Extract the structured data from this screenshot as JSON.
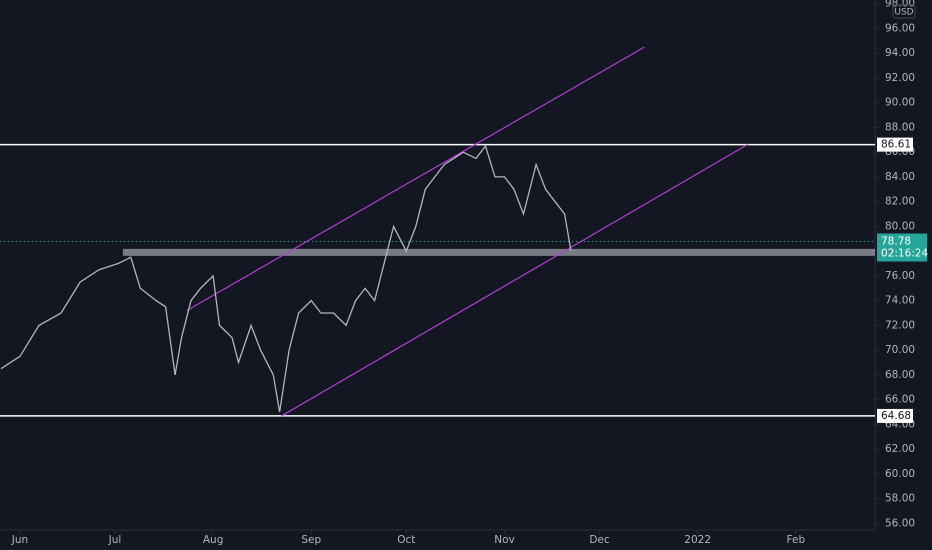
{
  "chart_data": {
    "type": "line",
    "x": [
      -6,
      0,
      6,
      13,
      19,
      25,
      31,
      35,
      38,
      43,
      46,
      49,
      51,
      54,
      57,
      61,
      63,
      67,
      69,
      73,
      76,
      80,
      82,
      85,
      88,
      92,
      95,
      99,
      103,
      106,
      109,
      112,
      115,
      118,
      122,
      125,
      128,
      131,
      134,
      137,
      140,
      144,
      147,
      150,
      153,
      156,
      159,
      163,
      166,
      169,
      172,
      174
    ],
    "series": [
      {
        "name": "USD",
        "color": "#b2b5be",
        "values": [
          68.5,
          69.5,
          72,
          73,
          75.5,
          76.5,
          77,
          77.5,
          75,
          74,
          73.5,
          68,
          71,
          74,
          75,
          76,
          72,
          71,
          69,
          72,
          70,
          68,
          65,
          70,
          73,
          74,
          73,
          73,
          72,
          74,
          75,
          74,
          77,
          80,
          78,
          80,
          83,
          84,
          85,
          85.5,
          86,
          85.5,
          86.5,
          84,
          84,
          83,
          81,
          85,
          83,
          82,
          81,
          78
        ]
      }
    ],
    "xlim": [
      -6.3,
      270
    ],
    "xticks": [
      {
        "value": 0,
        "label": "Jun"
      },
      {
        "value": 30,
        "label": "Jul"
      },
      {
        "value": 61,
        "label": "Aug"
      },
      {
        "value": 92,
        "label": "Sep"
      },
      {
        "value": 122,
        "label": "Oct"
      },
      {
        "value": 153,
        "label": "Nov"
      },
      {
        "value": 183,
        "label": "Dec"
      },
      {
        "value": 214,
        "label": "2022"
      },
      {
        "value": 245,
        "label": "Feb"
      }
    ],
    "ylim": [
      55.46,
      98.3
    ],
    "yticks": [
      {
        "value": 98,
        "label": "98.00"
      },
      {
        "value": 96,
        "label": "96.00"
      },
      {
        "value": 94,
        "label": "94.00"
      },
      {
        "value": 92,
        "label": "92.00"
      },
      {
        "value": 90,
        "label": "90.00"
      },
      {
        "value": 88,
        "label": "88.00"
      },
      {
        "value": 86,
        "label": "86.00"
      },
      {
        "value": 84,
        "label": "84.00"
      },
      {
        "value": 82,
        "label": "82.00"
      },
      {
        "value": 80,
        "label": "80.00"
      },
      {
        "value": 78,
        "label": "78.00"
      },
      {
        "value": 76,
        "label": "76.00"
      },
      {
        "value": 74,
        "label": "74.00"
      },
      {
        "value": 72,
        "label": "72.00"
      },
      {
        "value": 70,
        "label": "70.00"
      },
      {
        "value": 68,
        "label": "68.00"
      },
      {
        "value": 66,
        "label": "66.00"
      },
      {
        "value": 64,
        "label": "64.00"
      },
      {
        "value": 62,
        "label": "62.00"
      },
      {
        "value": 60,
        "label": "60.00"
      },
      {
        "value": 58,
        "label": "58.00"
      },
      {
        "value": 56,
        "label": "56.00"
      }
    ],
    "currency": "USD",
    "last_price": 78.78,
    "countdown": "02:16:24",
    "hlines": [
      86.61,
      64.68
    ],
    "band": {
      "x": 32.5,
      "value": 77.9
    },
    "channel": [
      {
        "x": [
          52.7,
          197.2
        ],
        "y": [
          73.2,
          94.5
        ],
        "color": "#b43cd6"
      },
      {
        "x": [
          82.6,
          229.7
        ],
        "y": [
          64.68,
          86.61
        ],
        "color": "#b43cd6"
      }
    ]
  }
}
